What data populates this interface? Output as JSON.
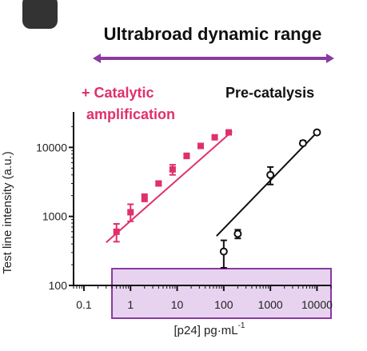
{
  "figure": {
    "title": "Ultrabroad dynamic range",
    "colors": {
      "catalytic": "#e0306a",
      "precatalysis": "#111111",
      "range_arrow": "#8a3aa0",
      "range_box_fill": "#e7d3ef",
      "range_box_stroke": "#8a3aa0"
    },
    "range_box": {
      "x_start": 0.4,
      "x_end": 20000
    }
  },
  "chart_data": {
    "type": "scatter",
    "title": "",
    "xlabel_main": "[p24] pg·mL",
    "xlabel_sup": "-1",
    "ylabel": "Test line intensity (a.u.)",
    "x_scale": "log",
    "y_scale": "log",
    "xlim": [
      0.06,
      20000
    ],
    "ylim": [
      100,
      25000
    ],
    "x_ticks": [
      0.1,
      1,
      10,
      100,
      1000,
      10000
    ],
    "x_tick_labels": [
      "0.1",
      "1",
      "10",
      "100",
      "1000",
      "10000"
    ],
    "y_ticks": [
      100,
      1000,
      10000
    ],
    "y_tick_labels": [
      "100",
      "1000",
      "10000"
    ],
    "grid": false,
    "series": [
      {
        "name": "+ Catalytic amplification",
        "label_lines": [
          "+ Catalytic",
          "amplification"
        ],
        "color": "#e0306a",
        "marker": "filled-square",
        "x": [
          0.5,
          1,
          2,
          4,
          8,
          16,
          32,
          64,
          128
        ],
        "y": [
          600,
          1150,
          1850,
          3000,
          4800,
          7500,
          10500,
          14000,
          16500
        ],
        "yerr_low": [
          430,
          850,
          1650,
          2850,
          4000,
          7000,
          10000,
          13500,
          16000
        ],
        "yerr_high": [
          780,
          1500,
          2100,
          3200,
          5600,
          8200,
          11000,
          14500,
          17000
        ],
        "fit": {
          "x": [
            0.3,
            150
          ],
          "y": [
            420,
            17000
          ]
        }
      },
      {
        "name": "Pre-catalysis",
        "label_lines": [
          "Pre-catalysis"
        ],
        "color": "#111111",
        "marker": "open-circle",
        "x": [
          100,
          200,
          1000,
          5000,
          10000
        ],
        "y": [
          310,
          560,
          4000,
          11500,
          16500
        ],
        "yerr_low": [
          180,
          480,
          2900,
          10800,
          16000
        ],
        "yerr_high": [
          450,
          640,
          5200,
          12500,
          17000
        ],
        "fit": {
          "x": [
            70,
            10000
          ],
          "y": [
            520,
            16500
          ]
        }
      }
    ]
  }
}
